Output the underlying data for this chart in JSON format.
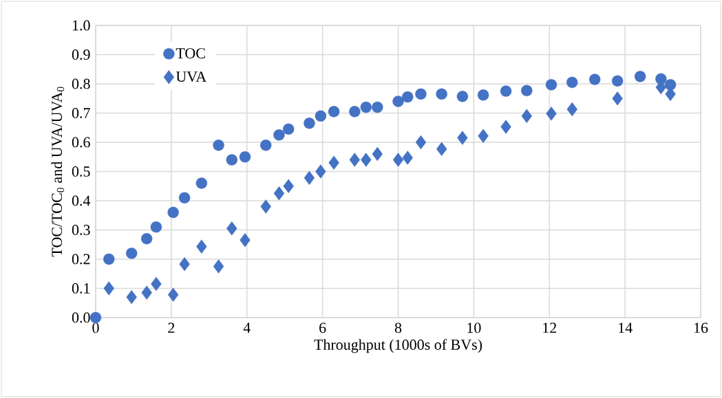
{
  "chart_data": {
    "type": "scatter",
    "xlabel": "Throughput (1000s of BVs)",
    "ylabel": "TOC/TOC$_{0}$ and UVA/UVA$_{0}$",
    "xlim": [
      0,
      16
    ],
    "xticks": [
      0,
      2,
      4,
      6,
      8,
      10,
      12,
      14,
      16
    ],
    "ylim": [
      0,
      1
    ],
    "yticks": [
      {
        "value": 0,
        "label": "0.0"
      },
      {
        "value": 0.1,
        "label": "0.1"
      },
      {
        "value": 0.2,
        "label": "0.2"
      },
      {
        "value": 0.3,
        "label": "0.3"
      },
      {
        "value": 0.4,
        "label": "0.4"
      },
      {
        "value": 0.5,
        "label": "0.5"
      },
      {
        "value": 0.6,
        "label": "0.6"
      },
      {
        "value": 0.7,
        "label": "0.7"
      },
      {
        "value": 0.8,
        "label": "0.8"
      },
      {
        "value": 0.9,
        "label": "0.9"
      },
      {
        "value": 1,
        "label": "1.0"
      }
    ],
    "grid": true,
    "legend": "top left",
    "series": [
      {
        "name": "TOC",
        "color": "#4472c4",
        "marker": "circle",
        "x": [
          0,
          0.35,
          0.95,
          1.35,
          1.6,
          2.05,
          2.35,
          2.8,
          3.25,
          3.6,
          3.95,
          4.5,
          4.85,
          5.1,
          5.65,
          5.95,
          6.3,
          6.85,
          7.15,
          7.45,
          8,
          8.25,
          8.6,
          9.15,
          9.7,
          10.25,
          10.85,
          11.4,
          12.05,
          12.6,
          13.2,
          13.8,
          14.4,
          14.95,
          15.2
        ],
        "values": [
          0,
          0.2,
          0.22,
          0.27,
          0.31,
          0.36,
          0.41,
          0.46,
          0.59,
          0.54,
          0.55,
          0.59,
          0.625,
          0.645,
          0.665,
          0.69,
          0.705,
          0.705,
          0.72,
          0.72,
          0.74,
          0.755,
          0.765,
          0.765,
          0.757,
          0.762,
          0.775,
          0.777,
          0.797,
          0.805,
          0.815,
          0.81,
          0.825,
          0.817,
          0.797
        ]
      },
      {
        "name": "UVA",
        "color": "#4472c4",
        "marker": "diamond",
        "x": [
          0.35,
          0.95,
          1.35,
          1.6,
          2.05,
          2.35,
          2.8,
          3.25,
          3.6,
          3.95,
          4.5,
          4.85,
          5.1,
          5.65,
          5.95,
          6.3,
          6.85,
          7.15,
          7.45,
          8,
          8.25,
          8.6,
          9.15,
          9.7,
          10.25,
          10.85,
          11.4,
          12.05,
          12.6,
          13.8,
          14.95,
          15.2
        ],
        "values": [
          0.1,
          0.07,
          0.085,
          0.115,
          0.078,
          0.183,
          0.243,
          0.175,
          0.305,
          0.265,
          0.38,
          0.425,
          0.45,
          0.478,
          0.5,
          0.53,
          0.54,
          0.54,
          0.56,
          0.54,
          0.547,
          0.6,
          0.577,
          0.615,
          0.622,
          0.653,
          0.69,
          0.698,
          0.713,
          0.75,
          0.788,
          0.765
        ]
      }
    ]
  }
}
